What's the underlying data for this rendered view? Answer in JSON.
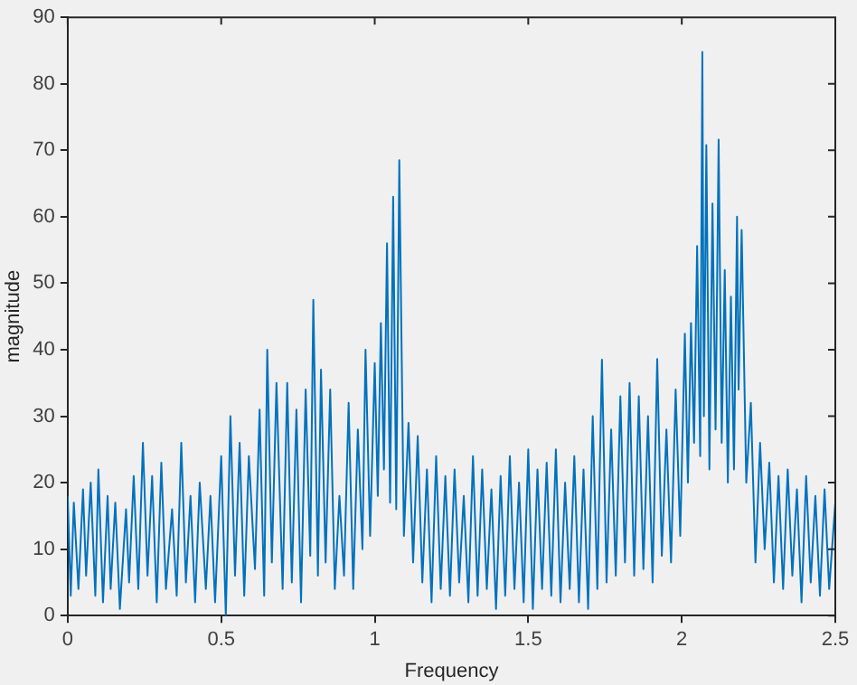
{
  "chart_data": {
    "type": "line",
    "xlabel": "Frequency",
    "ylabel": "magnitude",
    "xlim": [
      0,
      2.5
    ],
    "xticks": [
      0,
      0.5,
      1,
      1.5,
      2,
      2.5
    ],
    "ylim": [
      0,
      90
    ],
    "yticks": [
      0,
      10,
      20,
      30,
      40,
      50,
      60,
      70,
      80,
      90
    ],
    "grid": false,
    "legend": false,
    "marker": "none",
    "line_style": "solid",
    "series": [
      {
        "color": "#0072bd",
        "x": [
          0,
          0.01,
          0.02,
          0.035,
          0.05,
          0.06,
          0.075,
          0.09,
          0.1,
          0.115,
          0.13,
          0.14,
          0.155,
          0.17,
          0.19,
          0.2,
          0.215,
          0.23,
          0.245,
          0.26,
          0.275,
          0.29,
          0.305,
          0.32,
          0.34,
          0.355,
          0.37,
          0.385,
          0.4,
          0.415,
          0.43,
          0.45,
          0.465,
          0.48,
          0.5,
          0.515,
          0.53,
          0.545,
          0.56,
          0.575,
          0.59,
          0.61,
          0.625,
          0.64,
          0.65,
          0.665,
          0.68,
          0.7,
          0.715,
          0.73,
          0.745,
          0.76,
          0.775,
          0.79,
          0.8,
          0.815,
          0.825,
          0.84,
          0.855,
          0.87,
          0.885,
          0.9,
          0.915,
          0.93,
          0.945,
          0.96,
          0.97,
          0.985,
          1,
          1.01,
          1.02,
          1.03,
          1.04,
          1.05,
          1.06,
          1.07,
          1.08,
          1.095,
          1.11,
          1.125,
          1.14,
          1.155,
          1.17,
          1.185,
          1.2,
          1.215,
          1.23,
          1.245,
          1.26,
          1.275,
          1.29,
          1.305,
          1.32,
          1.335,
          1.35,
          1.365,
          1.38,
          1.395,
          1.41,
          1.425,
          1.44,
          1.455,
          1.47,
          1.485,
          1.5,
          1.515,
          1.53,
          1.545,
          1.56,
          1.575,
          1.59,
          1.605,
          1.62,
          1.635,
          1.65,
          1.665,
          1.68,
          1.695,
          1.71,
          1.725,
          1.74,
          1.755,
          1.77,
          1.785,
          1.8,
          1.815,
          1.83,
          1.845,
          1.86,
          1.875,
          1.89,
          1.905,
          1.92,
          1.935,
          1.95,
          1.965,
          1.98,
          1.995,
          2.01,
          2.02,
          2.03,
          2.04,
          2.05,
          2.06,
          2.067,
          2.072,
          2.08,
          2.09,
          2.1,
          2.11,
          2.12,
          2.13,
          2.14,
          2.15,
          2.16,
          2.17,
          2.18,
          2.185,
          2.195,
          2.21,
          2.225,
          2.24,
          2.255,
          2.27,
          2.285,
          2.3,
          2.315,
          2.33,
          2.345,
          2.36,
          2.375,
          2.39,
          2.405,
          2.42,
          2.435,
          2.45,
          2.465,
          2.48,
          2.5
        ],
        "values": [
          18,
          3,
          17,
          4,
          19,
          6,
          20,
          3,
          22,
          2,
          18,
          4,
          17,
          1,
          16,
          5,
          21,
          4,
          26,
          6,
          21,
          2,
          23,
          4,
          16,
          3,
          26,
          5,
          18,
          2,
          20,
          4,
          18,
          2,
          24,
          0,
          30,
          6,
          26,
          3,
          24,
          7,
          31,
          3,
          40,
          8,
          35,
          4,
          35,
          5,
          31,
          2,
          34,
          9,
          47.5,
          6,
          37,
          8,
          34,
          4,
          18,
          6,
          32,
          4,
          28,
          10,
          40,
          12,
          38,
          18,
          44,
          22,
          56,
          17,
          63,
          16,
          68.5,
          12,
          29,
          8,
          27,
          5,
          22,
          2,
          24,
          4,
          21,
          3,
          22,
          5,
          18,
          2,
          24,
          3,
          22,
          4,
          19,
          1,
          21,
          3,
          24,
          4,
          20,
          2,
          25,
          1,
          22,
          4,
          23,
          3,
          25,
          2,
          20,
          4,
          24,
          2,
          22,
          1,
          30,
          4,
          38.5,
          5,
          28,
          6,
          33,
          8,
          35,
          6,
          33,
          7,
          30,
          5,
          38.6,
          9,
          28,
          8,
          34,
          12,
          42.4,
          20,
          44,
          26,
          55.6,
          24,
          84.8,
          30,
          70.8,
          22,
          62,
          28,
          71.6,
          26,
          52,
          20,
          48,
          22,
          60,
          34,
          58,
          20,
          32,
          8,
          26,
          10,
          23,
          5,
          21,
          4,
          22,
          6,
          19,
          2,
          21,
          5,
          18,
          3,
          19,
          4,
          17
        ]
      }
    ]
  }
}
